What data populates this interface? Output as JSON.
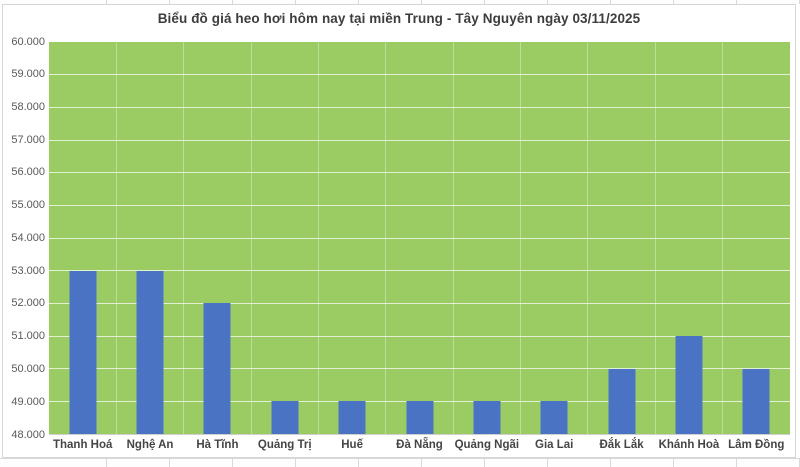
{
  "chart_data": {
    "type": "bar",
    "title": "Biểu đồ giá heo hơi hôm nay tại miền Trung - Tây Nguyên ngày 03/11/2025",
    "categories": [
      "Thanh Hoá",
      "Nghệ An",
      "Hà Tĩnh",
      "Quảng Trị",
      "Huế",
      "Đà Nẵng",
      "Quảng Ngãi",
      "Gia Lai",
      "Đắk Lắk",
      "Khánh Hoà",
      "Lâm Đồng"
    ],
    "values": [
      53000,
      53000,
      52000,
      49000,
      49000,
      49000,
      49000,
      49000,
      50000,
      51000,
      50000
    ],
    "y_tick_labels": [
      "60.000",
      "59.000",
      "58.000",
      "57.000",
      "56.000",
      "55.000",
      "54.000",
      "53.000",
      "52.000",
      "51.000",
      "50.000",
      "49.000",
      "48.000"
    ],
    "ylim": [
      48000,
      60000
    ],
    "xlabel": "",
    "ylabel": "",
    "grid": "horizontal-major",
    "legend": "none",
    "colors": {
      "bar": "#4b73c4",
      "plot_background": "#9bcb63",
      "gridline": "#ffffff",
      "axis_text": "#595959",
      "category_text": "#454545",
      "title_text": "#3d3d3d"
    }
  }
}
